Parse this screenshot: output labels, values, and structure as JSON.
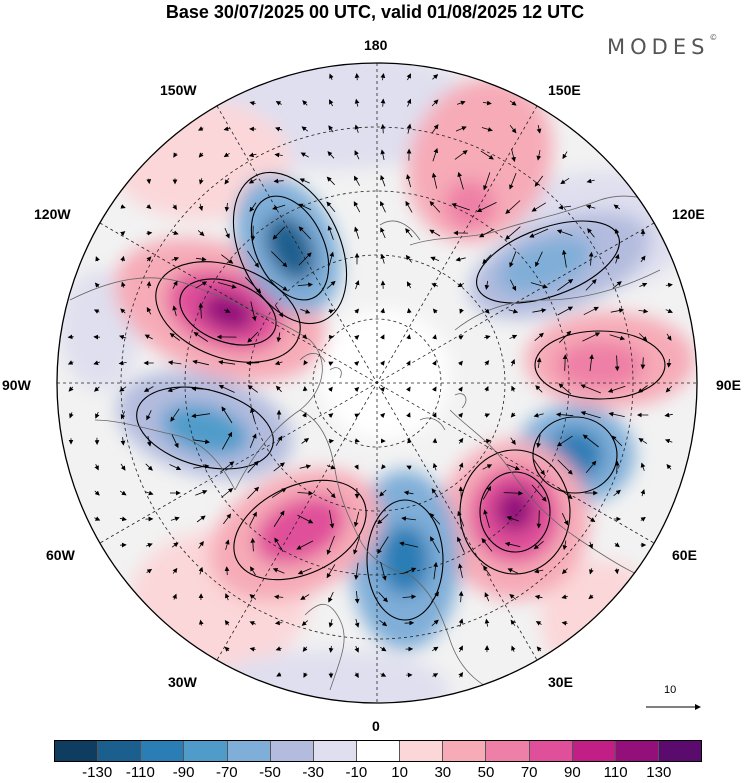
{
  "title": "Base 30/07/2025 00 UTC, valid 01/08/2025 12 UTC",
  "brand": "MODES",
  "brand_mark": "©",
  "longitude_labels": {
    "lon_180": "180",
    "lon_150e": "150E",
    "lon_120e": "120E",
    "lon_90e": "90E",
    "lon_60e": "60E",
    "lon_30e": "30E",
    "lon_0": "0",
    "lon_30w": "30W",
    "lon_60w": "60W",
    "lon_90w": "90W",
    "lon_120w": "120W",
    "lon_150w": "150W"
  },
  "reference_vector": {
    "label": "10"
  },
  "colorbar": {
    "colors": [
      "#0e3d5f",
      "#1a5f8e",
      "#2a7db5",
      "#4f9ccb",
      "#7faed8",
      "#b3bcde",
      "#dfdfef",
      "#ffffff",
      "#fbd7d9",
      "#f6abb7",
      "#ee7fa6",
      "#e0509a",
      "#c21f86",
      "#93107a",
      "#5b0a6e"
    ],
    "ticks": [
      "-130",
      "-110",
      "-90",
      "-70",
      "-50",
      "-30",
      "-10",
      "10",
      "30",
      "50",
      "70",
      "90",
      "110",
      "130"
    ]
  },
  "field_anomalies": [
    {
      "kind": "negative",
      "sector": "150W",
      "peak_class": "-110"
    },
    {
      "kind": "positive",
      "sector": "120W",
      "peak_class": "110"
    },
    {
      "kind": "negative",
      "sector": "90W",
      "peak_class": "-70"
    },
    {
      "kind": "positive",
      "sector": "60W",
      "peak_class": "70"
    },
    {
      "kind": "negative",
      "sector": "0",
      "peak_class": "-90"
    },
    {
      "kind": "positive",
      "sector": "30E",
      "peak_class": "110"
    },
    {
      "kind": "negative",
      "sector": "60E",
      "peak_class": "-90"
    },
    {
      "kind": "positive",
      "sector": "90E",
      "peak_class": "50"
    },
    {
      "kind": "negative",
      "sector": "120E",
      "peak_class": "-50"
    },
    {
      "kind": "positive",
      "sector": "150E",
      "peak_class": "50"
    }
  ]
}
